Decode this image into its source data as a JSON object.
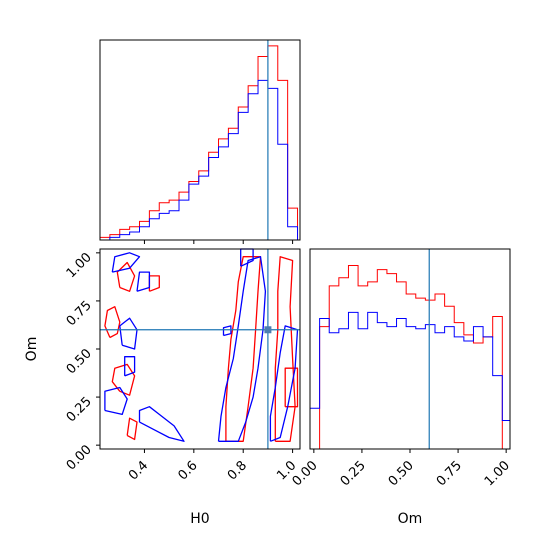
{
  "chart_data": [
    {
      "type": "histogram",
      "panel": "H0 marginal",
      "xlim": [
        0.22,
        1.03
      ],
      "truth": 0.9,
      "colors": {
        "series_a": "#ff0000",
        "series_b": "#0000ff",
        "truth": "#1f77b4"
      },
      "bin_edges": [
        0.22,
        0.26,
        0.3,
        0.34,
        0.38,
        0.42,
        0.46,
        0.5,
        0.54,
        0.58,
        0.62,
        0.66,
        0.7,
        0.74,
        0.78,
        0.82,
        0.86,
        0.9,
        0.94,
        0.98,
        1.02
      ],
      "series": [
        {
          "name": "",
          "color": "#ff0000",
          "values": [
            1,
            2,
            4,
            5,
            7,
            11,
            14,
            15,
            18,
            22,
            26,
            33,
            38,
            42,
            50,
            58,
            69,
            73,
            60,
            12
          ]
        },
        {
          "name": "",
          "color": "#0000ff",
          "values": [
            0,
            1,
            2,
            3,
            5,
            8,
            10,
            11,
            15,
            21,
            24,
            31,
            35,
            40,
            48,
            55,
            60,
            57,
            36,
            5
          ]
        }
      ]
    },
    {
      "type": "contour",
      "panel": "H0 vs Om",
      "xlabel": "H0",
      "ylabel": "Om",
      "xlim": [
        0.22,
        1.03
      ],
      "ylim": [
        -0.02,
        1.02
      ],
      "xticks": [
        "0.4",
        "0.6",
        "0.8",
        "1.0"
      ],
      "yticks": [
        "0.00",
        "0.25",
        "0.50",
        "0.75",
        "1.00"
      ],
      "truth": [
        0.9,
        0.6
      ],
      "series": [
        {
          "name": "",
          "color": "#ff0000",
          "contours": [
            [
              [
                0.26,
                0.56
              ],
              [
                0.29,
                0.58
              ],
              [
                0.3,
                0.64
              ],
              [
                0.28,
                0.72
              ],
              [
                0.25,
                0.7
              ],
              [
                0.24,
                0.62
              ],
              [
                0.26,
                0.56
              ]
            ],
            [
              [
                0.3,
                0.28
              ],
              [
                0.34,
                0.26
              ],
              [
                0.36,
                0.36
              ],
              [
                0.33,
                0.42
              ],
              [
                0.28,
                0.4
              ],
              [
                0.27,
                0.33
              ],
              [
                0.3,
                0.28
              ]
            ],
            [
              [
                0.3,
                0.82
              ],
              [
                0.34,
                0.8
              ],
              [
                0.36,
                0.88
              ],
              [
                0.33,
                0.95
              ],
              [
                0.29,
                0.9
              ],
              [
                0.3,
                0.82
              ]
            ],
            [
              [
                0.33,
                0.05
              ],
              [
                0.36,
                0.03
              ],
              [
                0.37,
                0.12
              ],
              [
                0.34,
                0.14
              ],
              [
                0.33,
                0.05
              ]
            ],
            [
              [
                0.42,
                0.8
              ],
              [
                0.46,
                0.82
              ],
              [
                0.46,
                0.88
              ],
              [
                0.42,
                0.88
              ],
              [
                0.42,
                0.8
              ]
            ],
            [
              [
                0.73,
                0.02
              ],
              [
                0.8,
                0.02
              ],
              [
                0.82,
                0.2
              ],
              [
                0.84,
                0.4
              ],
              [
                0.85,
                0.6
              ],
              [
                0.86,
                0.8
              ],
              [
                0.87,
                0.98
              ],
              [
                0.8,
                0.98
              ],
              [
                0.78,
                0.85
              ],
              [
                0.77,
                0.7
              ],
              [
                0.75,
                0.55
              ],
              [
                0.74,
                0.4
              ],
              [
                0.73,
                0.2
              ],
              [
                0.73,
                0.02
              ]
            ],
            [
              [
                0.93,
                0.02
              ],
              [
                0.99,
                0.02
              ],
              [
                1.01,
                0.2
              ],
              [
                1.0,
                0.45
              ],
              [
                0.99,
                0.72
              ],
              [
                1.0,
                0.96
              ],
              [
                0.95,
                0.98
              ],
              [
                0.94,
                0.8
              ],
              [
                0.94,
                0.6
              ],
              [
                0.93,
                0.4
              ],
              [
                0.93,
                0.2
              ],
              [
                0.93,
                0.02
              ]
            ],
            [
              [
                0.97,
                0.2
              ],
              [
                1.02,
                0.2
              ],
              [
                1.02,
                0.4
              ],
              [
                0.97,
                0.4
              ],
              [
                0.97,
                0.2
              ]
            ]
          ]
        },
        {
          "name": "",
          "color": "#0000ff",
          "contours": [
            [
              [
                0.27,
                0.9
              ],
              [
                0.34,
                0.92
              ],
              [
                0.38,
                0.98
              ],
              [
                0.34,
                1.0
              ],
              [
                0.28,
                0.98
              ],
              [
                0.27,
                0.9
              ]
            ],
            [
              [
                0.31,
                0.52
              ],
              [
                0.36,
                0.5
              ],
              [
                0.37,
                0.6
              ],
              [
                0.34,
                0.66
              ],
              [
                0.3,
                0.62
              ],
              [
                0.31,
                0.52
              ]
            ],
            [
              [
                0.24,
                0.18
              ],
              [
                0.31,
                0.16
              ],
              [
                0.33,
                0.24
              ],
              [
                0.3,
                0.3
              ],
              [
                0.24,
                0.28
              ],
              [
                0.24,
                0.18
              ]
            ],
            [
              [
                0.32,
                0.36
              ],
              [
                0.36,
                0.38
              ],
              [
                0.36,
                0.46
              ],
              [
                0.32,
                0.46
              ],
              [
                0.32,
                0.36
              ]
            ],
            [
              [
                0.38,
                0.12
              ],
              [
                0.44,
                0.08
              ],
              [
                0.5,
                0.04
              ],
              [
                0.56,
                0.02
              ],
              [
                0.52,
                0.1
              ],
              [
                0.46,
                0.16
              ],
              [
                0.42,
                0.2
              ],
              [
                0.38,
                0.18
              ],
              [
                0.38,
                0.12
              ]
            ],
            [
              [
                0.37,
                0.8
              ],
              [
                0.42,
                0.82
              ],
              [
                0.42,
                0.9
              ],
              [
                0.38,
                0.9
              ],
              [
                0.37,
                0.8
              ]
            ],
            [
              [
                0.7,
                0.02
              ],
              [
                0.78,
                0.02
              ],
              [
                0.81,
                0.12
              ],
              [
                0.84,
                0.25
              ],
              [
                0.86,
                0.4
              ],
              [
                0.88,
                0.6
              ],
              [
                0.89,
                0.8
              ],
              [
                0.87,
                0.98
              ],
              [
                0.82,
                0.96
              ],
              [
                0.8,
                0.8
              ],
              [
                0.78,
                0.62
              ],
              [
                0.76,
                0.45
              ],
              [
                0.73,
                0.3
              ],
              [
                0.71,
                0.15
              ],
              [
                0.7,
                0.02
              ]
            ],
            [
              [
                0.91,
                0.02
              ],
              [
                0.95,
                0.04
              ],
              [
                0.98,
                0.2
              ],
              [
                1.01,
                0.4
              ],
              [
                1.02,
                0.6
              ],
              [
                0.97,
                0.62
              ],
              [
                0.95,
                0.48
              ],
              [
                0.93,
                0.3
              ],
              [
                0.91,
                0.15
              ],
              [
                0.91,
                0.02
              ]
            ],
            [
              [
                0.79,
                0.93
              ],
              [
                0.84,
                0.96
              ],
              [
                0.84,
                1.02
              ],
              [
                0.79,
                1.02
              ],
              [
                0.79,
                0.93
              ]
            ],
            [
              [
                0.72,
                0.57
              ],
              [
                0.75,
                0.58
              ],
              [
                0.75,
                0.62
              ],
              [
                0.72,
                0.61
              ],
              [
                0.72,
                0.57
              ]
            ]
          ]
        }
      ]
    },
    {
      "type": "histogram",
      "panel": "Om marginal",
      "xlabel": "Om",
      "xlim": [
        -0.02,
        1.02
      ],
      "xticks": [
        "0.00",
        "0.25",
        "0.50",
        "0.75",
        "1.00"
      ],
      "truth": 0.6,
      "bin_edges": [
        -0.02,
        0.03,
        0.08,
        0.13,
        0.18,
        0.23,
        0.28,
        0.33,
        0.38,
        0.43,
        0.48,
        0.53,
        0.58,
        0.63,
        0.68,
        0.73,
        0.78,
        0.83,
        0.88,
        0.93,
        0.98,
        1.02
      ],
      "series": [
        {
          "name": "",
          "color": "#ff0000",
          "values": [
            0,
            60,
            80,
            84,
            90,
            80,
            82,
            88,
            86,
            82,
            76,
            74,
            73,
            76,
            70,
            62,
            56,
            52,
            55,
            65,
            0
          ]
        },
        {
          "name": "",
          "color": "#0000ff",
          "values": [
            20,
            64,
            57,
            59,
            67,
            59,
            67,
            62,
            60,
            64,
            60,
            59,
            61,
            57,
            60,
            55,
            53,
            60,
            55,
            36,
            14
          ]
        }
      ]
    }
  ]
}
